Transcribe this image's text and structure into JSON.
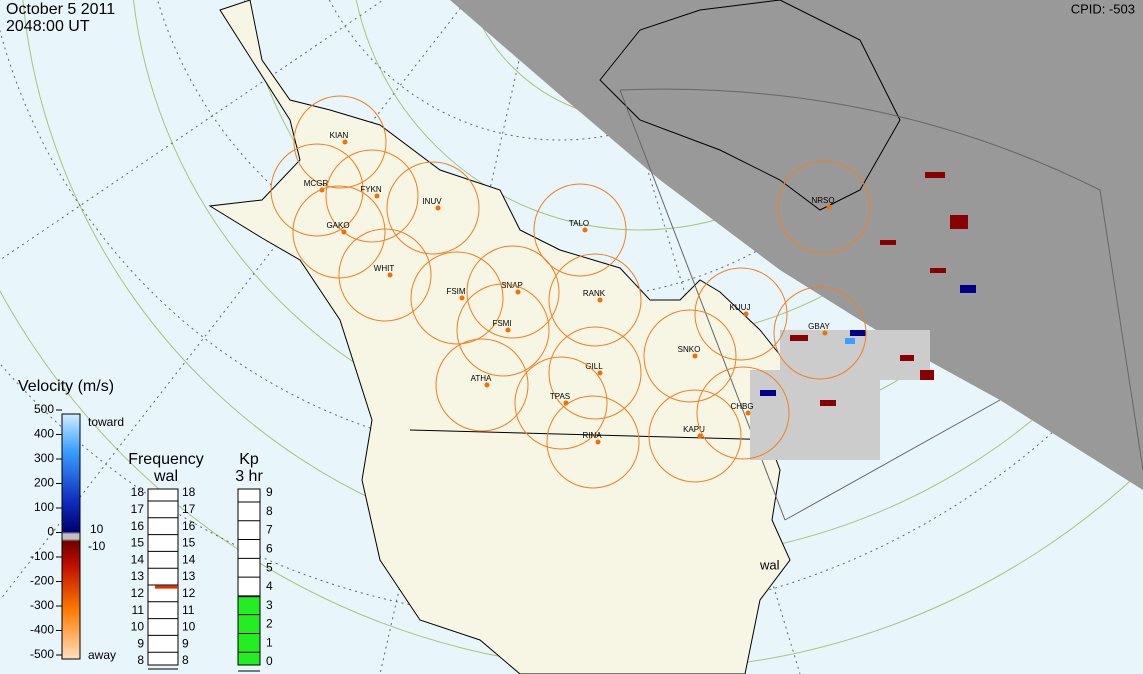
{
  "header": {
    "date": "October  5 2011",
    "time": "2048:00 UT",
    "cpid": "CPID:  -503"
  },
  "stations": [
    "KIAN",
    "MCGR",
    "FYKN",
    "INUV",
    "GAKO",
    "WHIT",
    "FSIM",
    "SNAP",
    "FSMI",
    "TALO",
    "RANK",
    "ATHA",
    "GILL",
    "TPAS",
    "RINA",
    "KAPU",
    "SNKO",
    "KUUJ",
    "GBAY",
    "CHBG",
    "NRSQ"
  ],
  "radar_label": "wal",
  "velocity_scale": {
    "title": "Velocity (m/s)",
    "ticks": [
      500,
      400,
      300,
      200,
      100,
      0,
      -100,
      -200,
      -300,
      -400,
      -500
    ],
    "toward": "toward",
    "away": "away",
    "zero_labels": [
      "10",
      "-10"
    ]
  },
  "frequency_scale": {
    "title": "Frequency",
    "subtitle": "wal",
    "ticks": [
      8,
      9,
      10,
      11,
      12,
      13,
      14,
      15,
      16,
      17,
      18
    ],
    "value": 12.4
  },
  "kp_scale": {
    "title": "Kp",
    "subtitle": "3 hr",
    "ticks": [
      0,
      1,
      2,
      3,
      4,
      5,
      6,
      7,
      8,
      9
    ],
    "value": 3
  }
}
